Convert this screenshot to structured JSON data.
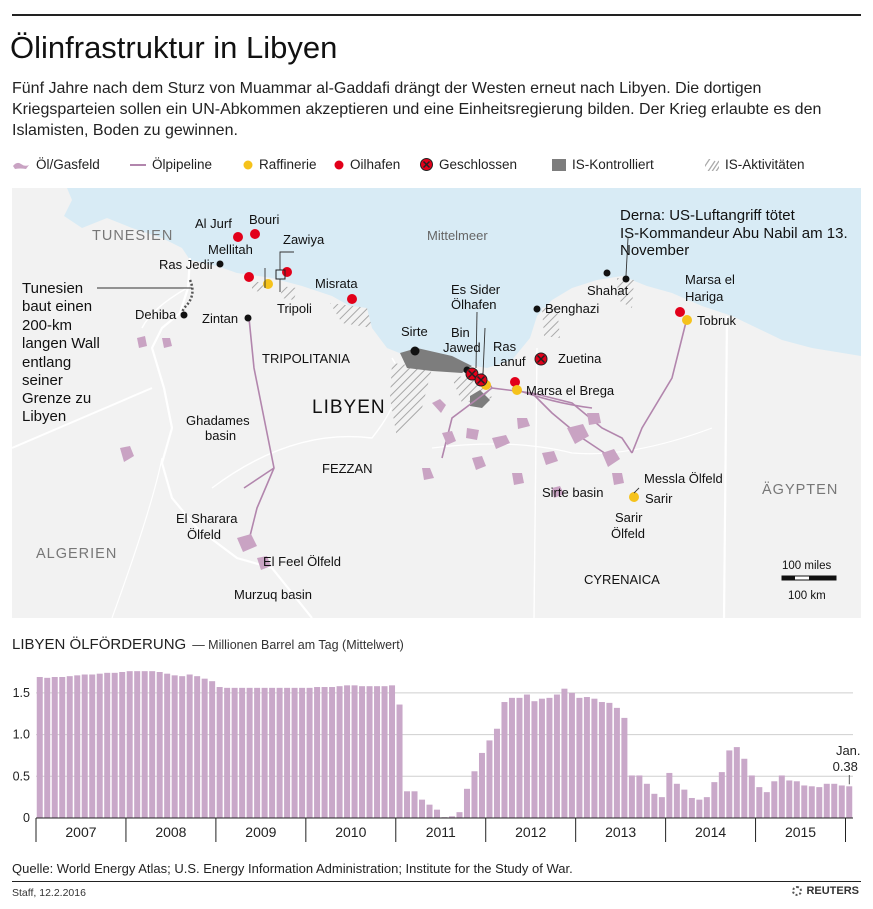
{
  "header": {
    "title": "Ölinfrastruktur in Libyen",
    "subtitle": "Fünf Jahre nach dem Sturz von Muammar al-Gaddafi drängt der Westen erneut nach Libyen. Die dortigen Kriegsparteien sollen ein UN-Abkommen akzeptieren und eine Einheitsregierung bilden. Der Krieg erlaubte es den Islamisten, Boden zu gewinnen."
  },
  "legend": {
    "oil_gas_field": "Öl/Gasfeld",
    "pipeline": "Ölpipeline",
    "refinery": "Raffinerie",
    "oil_port": "Oilhafen",
    "closed": "Geschlossen",
    "is_controlled": "IS-Kontrolliert",
    "is_activity": "IS-Aktivitäten"
  },
  "colors": {
    "sea": "#d8ebf5",
    "land": "#f2f2f2",
    "field": "#c9a3c3",
    "pipeline": "#b286ad",
    "refinery": "#f5c21b",
    "port": "#e2001a",
    "is_gray": "#7d7d7d",
    "bar": "#c9a8c9"
  },
  "map": {
    "countries": {
      "tunisia": "TUNESIEN",
      "algeria": "ALGERIEN",
      "egypt": "ÄGYPTEN",
      "libya": "LIBYEN"
    },
    "sea": "Mittelmeer",
    "regions": {
      "tripolitania": "TRIPOLITANIA",
      "fezzan": "FEZZAN",
      "cyrenaica": "CYRENAICA"
    },
    "places": {
      "al_jurf": "Al Jurf",
      "bouri": "Bouri",
      "mellitah": "Mellitah",
      "zawiya": "Zawiya",
      "ras_jedir": "Ras Jedir",
      "tripoli": "Tripoli",
      "misrata": "Misrata",
      "dehiba": "Dehiba",
      "zintan": "Zintan",
      "sirte": "Sirte",
      "es_sider_1": "Es Sider",
      "es_sider_2": "Ölhafen",
      "bin_jawed_1": "Bin",
      "bin_jawed_2": "Jawed",
      "ras_lanuf_1": "Ras",
      "ras_lanuf_2": "Lanuf",
      "benghazi": "Benghazi",
      "shahat": "Shahat",
      "zuetina": "Zuetina",
      "marsa_brega": "Marsa el Brega",
      "tobruk": "Tobruk",
      "marsa_hariga_1": "Marsa el",
      "marsa_hariga_2": "Hariga",
      "messla": "Messla Ölfeld",
      "sarir": "Sarir",
      "sarir_field_1": "Sarir",
      "sarir_field_2": "Ölfeld",
      "sirte_basin": "Sirte basin",
      "ghadames_1": "Ghadames",
      "ghadames_2": "basin",
      "sharara_1": "El Sharara",
      "sharara_2": "Ölfeld",
      "el_feel": "El Feel Ölfeld",
      "murzuq": "Murzuq basin"
    },
    "annotations": {
      "derna": [
        "Derna: US-Luftangriff tötet",
        "IS-Kommandeur Abu Nabil am 13.",
        "November"
      ],
      "tunisia_wall": [
        "Tunesien",
        "baut einen",
        "200-km",
        "langen Wall",
        "entlang",
        "seiner",
        "Grenze zu",
        "Libyen"
      ]
    },
    "scale": {
      "miles": "100 miles",
      "km": "100 km"
    }
  },
  "production": {
    "title": "LIBYEN ÖLFÖRDERUNG",
    "unit": "— Millionen Barrel am Tag (Mittelwert)",
    "last_label_month": "Jan.",
    "last_label_value": "0.38"
  },
  "chart_data": {
    "type": "bar",
    "title": "LIBYEN ÖLFÖRDERUNG",
    "ylabel": "Millionen Barrel am Tag (Mittelwert)",
    "ylim": [
      0,
      1.75
    ],
    "yticks": [
      0,
      0.5,
      1.0,
      1.5
    ],
    "ytick_labels": [
      "0",
      "0.5",
      "1.0",
      "1.5"
    ],
    "years": [
      "2007",
      "2008",
      "2009",
      "2010",
      "2011",
      "2012",
      "2013",
      "2014",
      "2015"
    ],
    "x_range": [
      "2007-01",
      "2016-01"
    ],
    "grid": "horizontal",
    "values": [
      1.69,
      1.68,
      1.69,
      1.69,
      1.7,
      1.71,
      1.72,
      1.72,
      1.73,
      1.74,
      1.74,
      1.75,
      1.76,
      1.76,
      1.76,
      1.76,
      1.75,
      1.73,
      1.71,
      1.7,
      1.72,
      1.7,
      1.67,
      1.64,
      1.57,
      1.56,
      1.56,
      1.56,
      1.56,
      1.56,
      1.56,
      1.56,
      1.56,
      1.56,
      1.56,
      1.56,
      1.56,
      1.57,
      1.57,
      1.57,
      1.58,
      1.59,
      1.59,
      1.58,
      1.58,
      1.58,
      1.58,
      1.59,
      1.36,
      0.32,
      0.32,
      0.22,
      0.16,
      0.1,
      0.01,
      0.02,
      0.07,
      0.35,
      0.56,
      0.78,
      0.93,
      1.07,
      1.39,
      1.44,
      1.44,
      1.48,
      1.4,
      1.43,
      1.44,
      1.48,
      1.55,
      1.5,
      1.44,
      1.45,
      1.43,
      1.39,
      1.38,
      1.32,
      1.2,
      0.51,
      0.51,
      0.41,
      0.29,
      0.25,
      0.54,
      0.41,
      0.34,
      0.24,
      0.22,
      0.25,
      0.43,
      0.55,
      0.81,
      0.85,
      0.71,
      0.51,
      0.37,
      0.31,
      0.44,
      0.51,
      0.45,
      0.44,
      0.39,
      0.38,
      0.37,
      0.41,
      0.41,
      0.39,
      0.38
    ],
    "annotation": {
      "label": "Jan.",
      "value": 0.38
    }
  },
  "footer": {
    "source": "Quelle: World Energy Atlas; U.S. Energy Information Administration; Institute for the Study of War.",
    "credit": "Staff, 12.2.2016",
    "brand": "REUTERS"
  }
}
